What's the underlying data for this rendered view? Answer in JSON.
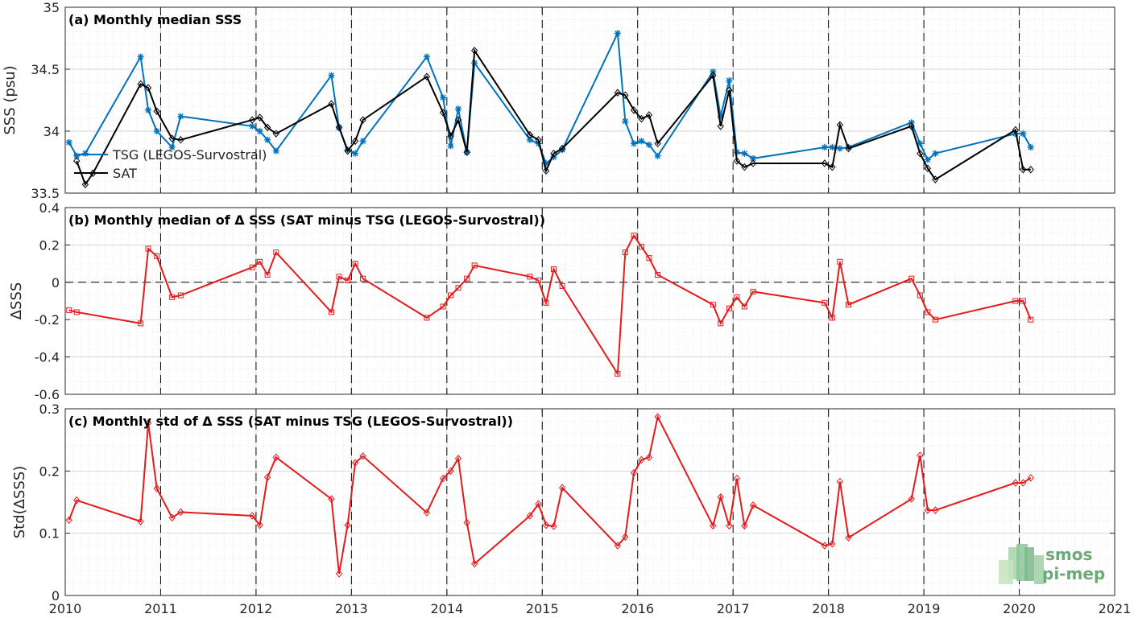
{
  "chart_data": [
    {
      "type": "line",
      "title": "(a) Monthly median SSS",
      "xlabel": "",
      "ylabel": "SSS (psu)",
      "xlim": [
        2010,
        2021
      ],
      "ylim": [
        33.5,
        35
      ],
      "yticks": [
        "33.5",
        "34",
        "34.5",
        "35"
      ],
      "grid": true,
      "vertical_dashed_lines": [
        2011,
        2012,
        2013,
        2014,
        2015,
        2016,
        2017,
        2018,
        2019,
        2020
      ],
      "legend": {
        "position": "left-bottom",
        "entries": [
          "TSG (LEGOS-Survostral)",
          "SAT"
        ]
      },
      "series": [
        {
          "name": "TSG (LEGOS-Survostral)",
          "color": "#0072bd",
          "marker": "asterisk",
          "x": [
            2010.04,
            2010.12,
            2010.21,
            2010.79,
            2010.87,
            2010.96,
            2011.12,
            2011.21,
            2011.96,
            2012.04,
            2012.12,
            2012.21,
            2012.79,
            2012.87,
            2012.96,
            2013.04,
            2013.12,
            2013.79,
            2013.96,
            2014.04,
            2014.12,
            2014.21,
            2014.29,
            2014.87,
            2014.96,
            2015.04,
            2015.12,
            2015.21,
            2015.79,
            2015.87,
            2015.96,
            2016.04,
            2016.12,
            2016.21,
            2016.79,
            2016.87,
            2016.96,
            2017.04,
            2017.12,
            2017.21,
            2017.96,
            2018.04,
            2018.12,
            2018.21,
            2018.87,
            2018.96,
            2019.04,
            2019.12,
            2019.96,
            2020.04,
            2020.12
          ],
          "y": [
            33.91,
            33.8,
            33.82,
            34.6,
            34.17,
            34.0,
            33.87,
            34.12,
            34.04,
            34.0,
            33.93,
            33.84,
            34.45,
            34.03,
            33.85,
            33.82,
            33.92,
            34.6,
            34.27,
            33.88,
            34.18,
            33.83,
            34.55,
            33.93,
            33.9,
            33.74,
            33.79,
            33.85,
            34.79,
            34.08,
            33.9,
            33.92,
            33.89,
            33.8,
            34.48,
            34.12,
            34.41,
            33.83,
            33.82,
            33.78,
            33.87,
            33.87,
            33.86,
            33.87,
            34.07,
            33.9,
            33.77,
            33.82,
            33.98,
            33.98,
            33.87
          ]
        },
        {
          "name": "SAT",
          "color": "#000000",
          "marker": "diamond",
          "x": [
            2010.12,
            2010.21,
            2010.29,
            2010.79,
            2010.87,
            2010.96,
            2011.12,
            2011.21,
            2011.96,
            2012.04,
            2012.12,
            2012.21,
            2012.79,
            2012.87,
            2012.96,
            2013.04,
            2013.12,
            2013.79,
            2013.96,
            2014.04,
            2014.12,
            2014.21,
            2014.29,
            2014.87,
            2014.96,
            2015.04,
            2015.12,
            2015.21,
            2015.79,
            2015.87,
            2015.96,
            2016.04,
            2016.12,
            2016.21,
            2016.79,
            2016.87,
            2016.96,
            2017.04,
            2017.12,
            2017.21,
            2017.96,
            2018.04,
            2018.12,
            2018.21,
            2018.87,
            2018.96,
            2019.04,
            2019.12,
            2019.96,
            2020.04,
            2020.12
          ],
          "y": [
            33.76,
            33.57,
            33.66,
            34.38,
            34.35,
            34.16,
            33.94,
            33.93,
            34.09,
            34.11,
            34.03,
            33.98,
            34.22,
            34.03,
            33.84,
            33.92,
            34.09,
            34.44,
            34.15,
            33.96,
            34.09,
            33.83,
            34.65,
            33.97,
            33.93,
            33.68,
            33.82,
            33.86,
            34.31,
            34.29,
            34.17,
            34.1,
            34.13,
            33.9,
            34.45,
            34.04,
            34.33,
            33.76,
            33.71,
            33.74,
            33.74,
            33.71,
            34.05,
            33.86,
            34.04,
            33.82,
            33.7,
            33.61,
            34.01,
            33.69,
            33.69
          ]
        }
      ]
    },
    {
      "type": "line",
      "title": "(b) Monthly median of Δ SSS (SAT minus TSG (LEGOS-Survostral))",
      "xlabel": "",
      "ylabel": "ΔSSS",
      "xlim": [
        2010,
        2021
      ],
      "ylim": [
        -0.6,
        0.4
      ],
      "yticks": [
        "-0.6",
        "-0.4",
        "-0.2",
        "0",
        "0.2",
        "0.4"
      ],
      "grid": true,
      "horizontal_dashed_line": 0,
      "vertical_dashed_lines": [
        2011,
        2012,
        2013,
        2014,
        2015,
        2016,
        2017,
        2018,
        2019,
        2020
      ],
      "series": [
        {
          "color": "#e41a1c",
          "marker": "square",
          "x": [
            2010.04,
            2010.12,
            2010.79,
            2010.87,
            2010.96,
            2011.12,
            2011.21,
            2011.96,
            2012.04,
            2012.12,
            2012.21,
            2012.79,
            2012.87,
            2012.96,
            2013.04,
            2013.12,
            2013.79,
            2013.96,
            2014.04,
            2014.12,
            2014.21,
            2014.29,
            2014.87,
            2014.96,
            2015.04,
            2015.12,
            2015.21,
            2015.79,
            2015.87,
            2015.96,
            2016.04,
            2016.12,
            2016.21,
            2016.79,
            2016.87,
            2016.96,
            2017.04,
            2017.12,
            2017.21,
            2017.96,
            2018.04,
            2018.12,
            2018.21,
            2018.87,
            2018.96,
            2019.04,
            2019.12,
            2019.96,
            2020.04,
            2020.12
          ],
          "y": [
            -0.15,
            -0.16,
            -0.22,
            0.18,
            0.14,
            -0.08,
            -0.07,
            0.08,
            0.11,
            0.04,
            0.16,
            -0.16,
            0.03,
            0.01,
            0.1,
            0.02,
            -0.19,
            -0.13,
            -0.07,
            -0.03,
            0.02,
            0.09,
            0.03,
            0.01,
            -0.11,
            0.07,
            -0.02,
            -0.49,
            0.16,
            0.25,
            0.19,
            0.13,
            0.04,
            -0.12,
            -0.22,
            -0.14,
            -0.08,
            -0.13,
            -0.05,
            -0.11,
            -0.19,
            0.11,
            -0.12,
            0.02,
            -0.07,
            -0.16,
            -0.2,
            -0.1,
            -0.1,
            -0.2
          ]
        }
      ]
    },
    {
      "type": "line",
      "title": "(c) Monthly std of Δ SSS (SAT minus TSG (LEGOS-Survostral))",
      "xlabel": "",
      "ylabel": "Std(ΔSSS)",
      "xlim": [
        2010,
        2021
      ],
      "ylim": [
        0,
        0.3
      ],
      "yticks": [
        "0",
        "0.1",
        "0.2",
        "0.3"
      ],
      "xticks": [
        "2010",
        "2011",
        "2012",
        "2013",
        "2014",
        "2015",
        "2016",
        "2017",
        "2018",
        "2019",
        "2020",
        "2021"
      ],
      "grid": true,
      "vertical_dashed_lines": [
        2011,
        2012,
        2013,
        2014,
        2015,
        2016,
        2017,
        2018,
        2019,
        2020
      ],
      "series": [
        {
          "color": "#e41a1c",
          "marker": "diamond",
          "x": [
            2010.04,
            2010.12,
            2010.79,
            2010.87,
            2010.96,
            2011.12,
            2011.21,
            2011.96,
            2012.04,
            2012.12,
            2012.21,
            2012.79,
            2012.87,
            2012.96,
            2013.04,
            2013.12,
            2013.79,
            2013.96,
            2014.04,
            2014.12,
            2014.21,
            2014.29,
            2014.87,
            2014.96,
            2015.04,
            2015.12,
            2015.21,
            2015.79,
            2015.87,
            2015.96,
            2016.04,
            2016.12,
            2016.21,
            2016.79,
            2016.87,
            2016.96,
            2017.04,
            2017.12,
            2017.21,
            2017.96,
            2018.04,
            2018.12,
            2018.21,
            2018.87,
            2018.96,
            2019.04,
            2019.12,
            2019.96,
            2020.04,
            2020.12
          ],
          "y": [
            0.121,
            0.153,
            0.119,
            0.277,
            0.172,
            0.125,
            0.134,
            0.128,
            0.113,
            0.19,
            0.222,
            0.155,
            0.035,
            0.113,
            0.213,
            0.224,
            0.133,
            0.188,
            0.2,
            0.22,
            0.117,
            0.051,
            0.128,
            0.147,
            0.113,
            0.111,
            0.173,
            0.08,
            0.094,
            0.197,
            0.218,
            0.222,
            0.287,
            0.112,
            0.158,
            0.112,
            0.188,
            0.112,
            0.145,
            0.08,
            0.083,
            0.183,
            0.093,
            0.155,
            0.225,
            0.137,
            0.137,
            0.181,
            0.181,
            0.189
          ]
        }
      ]
    }
  ],
  "logo": {
    "line1": "smos",
    "line2": "pi-mep",
    "color": "#6fa878"
  }
}
